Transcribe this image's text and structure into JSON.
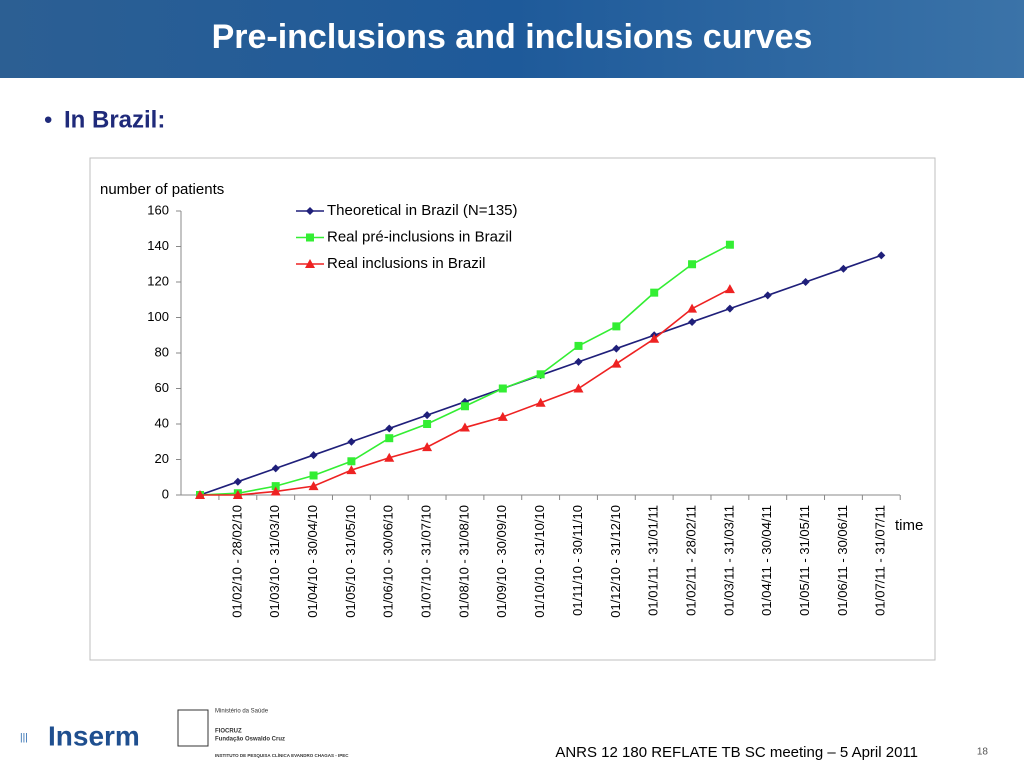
{
  "slide": {
    "title": "Pre-inclusions and inclusions curves",
    "bullet": "In Brazil:",
    "footer": "ANRS 12 180 REFLATE TB SC meeting – 5 April 2011",
    "page": "18",
    "logo_inserm": "Inserm",
    "logo_ministry": "Ministério da Saúde",
    "logo_fiocruz": "FIOCRUZ",
    "logo_fundacao": "Fundação Oswaldo Cruz",
    "logo_ipec": "INSTITUTO DE PESQUISA CLÍNICA EVANDRO CHAGAS - IPEC"
  },
  "chart_data": {
    "type": "line",
    "y_label": "number of patients",
    "x_label": "time",
    "categories": [
      null,
      "01/02/10 - 28/02/10",
      "01/03/10 - 31/03/10",
      "01/04/10 - 30/04/10",
      "01/05/10 - 31/05/10",
      "01/06/10 - 30/06/10",
      "01/07/10 - 31/07/10",
      "01/08/10 - 31/08/10",
      "01/09/10 - 30/09/10",
      "01/10/10 - 31/10/10",
      "01/11/10 - 30/11/10",
      "01/12/10 - 31/12/10",
      "01/01/11 - 31/01/11",
      "01/02/11 - 28/02/11",
      "01/03/11 - 31/03/11",
      "01/04/11 - 30/04/11",
      "01/05/11 - 31/05/11",
      "01/06/11 - 30/06/11",
      "01/07/11 - 31/07/11"
    ],
    "series": [
      {
        "name": "Theoretical in Brazil (N=135)",
        "color": "#1f1f7a",
        "marker": "diamond",
        "values": [
          0,
          7.5,
          15,
          22.5,
          30,
          37.5,
          45,
          52.5,
          60,
          67.5,
          75,
          82.5,
          90,
          97.5,
          105,
          112.5,
          120,
          127.5,
          135
        ]
      },
      {
        "name": "Real pré-inclusions in Brazil",
        "color": "#33ee33",
        "marker": "square",
        "values": [
          0,
          1,
          5,
          11,
          19,
          32,
          40,
          50,
          60,
          68,
          84,
          95,
          114,
          130,
          141,
          null,
          null,
          null,
          null
        ]
      },
      {
        "name": "Real inclusions in Brazil",
        "color": "#ee2222",
        "marker": "triangle",
        "values": [
          0,
          0,
          2,
          5,
          14,
          21,
          27,
          38,
          44,
          52,
          60,
          74,
          88,
          105,
          116,
          null,
          null,
          null,
          null
        ]
      }
    ],
    "ylim": [
      0,
      160
    ],
    "yticks": [
      0,
      20,
      40,
      60,
      80,
      100,
      120,
      140,
      160
    ],
    "grid": false,
    "legend": "top-left"
  }
}
